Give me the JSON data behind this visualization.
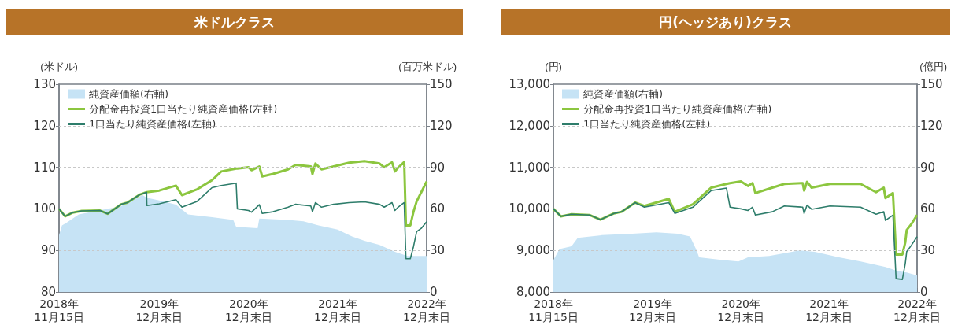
{
  "chart_data": [
    {
      "type": "line",
      "title": "米ドルクラス",
      "ylabel": "(米ドル)",
      "y2label": "(百万米ドル)",
      "legend": "top left",
      "grid": "y",
      "xlim": [
        "2018-11-15",
        "2022-12-31"
      ],
      "xticks": [
        {
          "value": "2018-11-15",
          "label": "2018年\n11月15日"
        },
        {
          "value": "2019-12-31",
          "label": "2019年\n12月末日"
        },
        {
          "value": "2020-12-31",
          "label": "2020年\n12月末日"
        },
        {
          "value": "2021-12-31",
          "label": "2021年\n12月末日"
        },
        {
          "value": "2022-12-31",
          "label": "2022年\n12月末日"
        }
      ],
      "ylim": [
        80,
        130
      ],
      "yticks": [
        80,
        90,
        100,
        110,
        120,
        130
      ],
      "y2lim": [
        0,
        150
      ],
      "y2ticks": [
        0,
        30,
        60,
        90,
        120,
        150
      ],
      "x": [
        "2018-11-15",
        "2018-12-10",
        "2019-01-10",
        "2019-02-16",
        "2019-05-02",
        "2019-06-02",
        "2019-07-28",
        "2019-08-22",
        "2019-10-11",
        "2019-11-09",
        "2019-11-10",
        "2019-12-31",
        "2020-03-08",
        "2020-04-02",
        "2020-06-03",
        "2020-08-03",
        "2020-09-10",
        "2020-11-10",
        "2020-11-15",
        "2020-12-31",
        "2021-01-12",
        "2021-02-13",
        "2021-02-25",
        "2021-04-10",
        "2021-06-11",
        "2021-07-12",
        "2021-09-12",
        "2021-09-19",
        "2021-10-01",
        "2021-10-26",
        "2021-12-15",
        "2022-02-16",
        "2022-04-20",
        "2022-06-21",
        "2022-07-10",
        "2022-08-11",
        "2022-08-23",
        "2022-09-05",
        "2022-09-30",
        "2022-10-07",
        "2022-10-25",
        "2022-11-07",
        "2022-11-20",
        "2022-12-09",
        "2022-12-31"
      ],
      "series": [
        {
          "name": "純資産価額(右軸)",
          "type": "area",
          "axis": "y2",
          "color": "#c6e3f5",
          "x": [
            "2018-11-15",
            "2018-11-27",
            "2018-12-16",
            "2019-02-04",
            "2019-05-02",
            "2019-07-28",
            "2019-10-23",
            "2019-11-09",
            "2019-12-31",
            "2020-03-08",
            "2020-04-27",
            "2020-08-03",
            "2020-10-29",
            "2020-11-10",
            "2021-02-06",
            "2021-02-13",
            "2021-06-11",
            "2021-08-13",
            "2021-10-14",
            "2021-12-31",
            "2022-02-28",
            "2022-04-20",
            "2022-06-21",
            "2022-08-23",
            "2022-10-12",
            "2022-12-31"
          ],
          "values": [
            41,
            48,
            50,
            56,
            59,
            62,
            70,
            68,
            66,
            63,
            56,
            54,
            52,
            47,
            46,
            53,
            52,
            51,
            48,
            45,
            40,
            37,
            34,
            29,
            26,
            26
          ]
        },
        {
          "name": "分配金再投資1口当たり純資産価格(左軸)",
          "type": "line",
          "color": "#8cc63f",
          "values": [
            100,
            98.2,
            99.1,
            99.5,
            99.6,
            98.8,
            101.1,
            101.5,
            103.4,
            104.0,
            104.0,
            104.4,
            105.6,
            103.3,
            104.7,
            106.9,
            109.0,
            109.7,
            109.7,
            110.0,
            109.3,
            110.2,
            107.8,
            108.4,
            109.5,
            110.6,
            110.2,
            108.4,
            110.9,
            109.5,
            110.2,
            111.1,
            111.5,
            110.9,
            110.0,
            111.2,
            109.0,
            109.9,
            111.3,
            96.0,
            96.0,
            99.3,
            101.8,
            104.0,
            106.6
          ]
        },
        {
          "name": "1口当たり純資産価格(左軸)",
          "type": "line",
          "color": "#2e7d6b",
          "values": [
            100,
            98.2,
            99.1,
            99.5,
            99.6,
            98.8,
            101.1,
            101.5,
            103.4,
            104.0,
            100.8,
            101.2,
            102.2,
            100.4,
            101.8,
            105.1,
            105.6,
            106.2,
            100.0,
            99.6,
            99.2,
            101.0,
            98.9,
            99.3,
            100.4,
            101.1,
            100.7,
            99.3,
            101.5,
            100.4,
            101.1,
            101.5,
            101.7,
            101.1,
            100.4,
            101.5,
            99.6,
            100.4,
            101.5,
            88.0,
            88.0,
            90.9,
            94.5,
            95.3,
            96.9
          ]
        }
      ]
    },
    {
      "type": "line",
      "title": "円(ヘッジあり)クラス",
      "ylabel": "(円)",
      "y2label": "(億円)",
      "legend": "top left",
      "grid": "y",
      "xlim": [
        "2018-11-15",
        "2022-12-31"
      ],
      "xticks": [
        {
          "value": "2018-11-15",
          "label": "2018年\n11月15日"
        },
        {
          "value": "2019-12-31",
          "label": "2019年\n12月末日"
        },
        {
          "value": "2020-12-31",
          "label": "2020年\n12月末日"
        },
        {
          "value": "2021-12-31",
          "label": "2021年\n12月末日"
        },
        {
          "value": "2022-12-31",
          "label": "2022年\n12月末日"
        }
      ],
      "ylim": [
        8000,
        13000
      ],
      "yticks": [
        {
          "value": 8000,
          "label": "8,000"
        },
        {
          "value": 9000,
          "label": "9,000"
        },
        {
          "value": 10000,
          "label": "10,000"
        },
        {
          "value": 11000,
          "label": "11,000"
        },
        {
          "value": 12000,
          "label": "12,000"
        },
        {
          "value": 13000,
          "label": "13,000"
        }
      ],
      "y2lim": [
        0,
        150
      ],
      "y2ticks": [
        0,
        30,
        60,
        90,
        120,
        150
      ],
      "x": [
        "2018-11-15",
        "2018-12-16",
        "2019-01-29",
        "2019-04-15",
        "2019-05-29",
        "2019-07-24",
        "2019-08-25",
        "2019-10-20",
        "2019-11-27",
        "2020-03-07",
        "2020-04-01",
        "2020-06-15",
        "2020-08-30",
        "2020-11-01",
        "2020-11-16",
        "2020-12-31",
        "2021-01-29",
        "2021-02-17",
        "2021-03-01",
        "2021-05-10",
        "2021-06-29",
        "2021-09-13",
        "2021-09-19",
        "2021-10-01",
        "2021-10-20",
        "2022-01-04",
        "2022-05-11",
        "2022-07-14",
        "2022-08-15",
        "2022-08-22",
        "2022-09-22",
        "2022-10-05",
        "2022-10-31",
        "2022-11-12",
        "2022-11-18",
        "2022-12-07",
        "2022-12-31"
      ],
      "series": [
        {
          "name": "純資産価額(右軸)",
          "type": "area",
          "axis": "y2",
          "color": "#c6e3f5",
          "x": [
            "2018-11-15",
            "2018-12-10",
            "2019-01-29",
            "2019-02-24",
            "2019-06-04",
            "2019-10-08",
            "2020-01-16",
            "2020-04-13",
            "2020-06-03",
            "2020-06-28",
            "2020-07-11",
            "2020-10-19",
            "2020-12-21",
            "2021-01-29",
            "2021-04-27",
            "2021-08-31",
            "2021-11-02",
            "2022-02-11",
            "2022-05-11",
            "2022-08-22",
            "2022-10-12",
            "2022-11-18",
            "2022-12-31"
          ],
          "values": [
            23,
            31,
            33,
            39,
            41,
            42,
            43,
            42,
            40,
            31,
            25,
            23,
            22,
            25,
            26,
            30,
            29,
            25,
            22,
            18,
            15,
            14,
            12
          ]
        },
        {
          "name": "分配金再投資1口当たり純資産価格(左軸)",
          "type": "line",
          "color": "#8cc63f",
          "values": [
            10000,
            9820,
            9870,
            9850,
            9740,
            9890,
            9930,
            10150,
            10070,
            10240,
            9930,
            10110,
            10510,
            10600,
            10620,
            10660,
            10550,
            10620,
            10380,
            10510,
            10600,
            10620,
            10440,
            10650,
            10510,
            10600,
            10600,
            10400,
            10510,
            10260,
            10380,
            8900,
            8900,
            9190,
            9490,
            9630,
            9850
          ]
        },
        {
          "name": "1口当たり純資産価格(左軸)",
          "type": "line",
          "color": "#2e7d6b",
          "values": [
            10000,
            9820,
            9870,
            9850,
            9740,
            9890,
            9930,
            10150,
            10040,
            10150,
            9890,
            10040,
            10440,
            10500,
            10040,
            10000,
            9960,
            10040,
            9850,
            9930,
            10070,
            10040,
            9890,
            10090,
            9990,
            10070,
            10040,
            9870,
            9930,
            9720,
            9850,
            8320,
            8300,
            8680,
            8970,
            9120,
            9330
          ]
        }
      ]
    }
  ]
}
